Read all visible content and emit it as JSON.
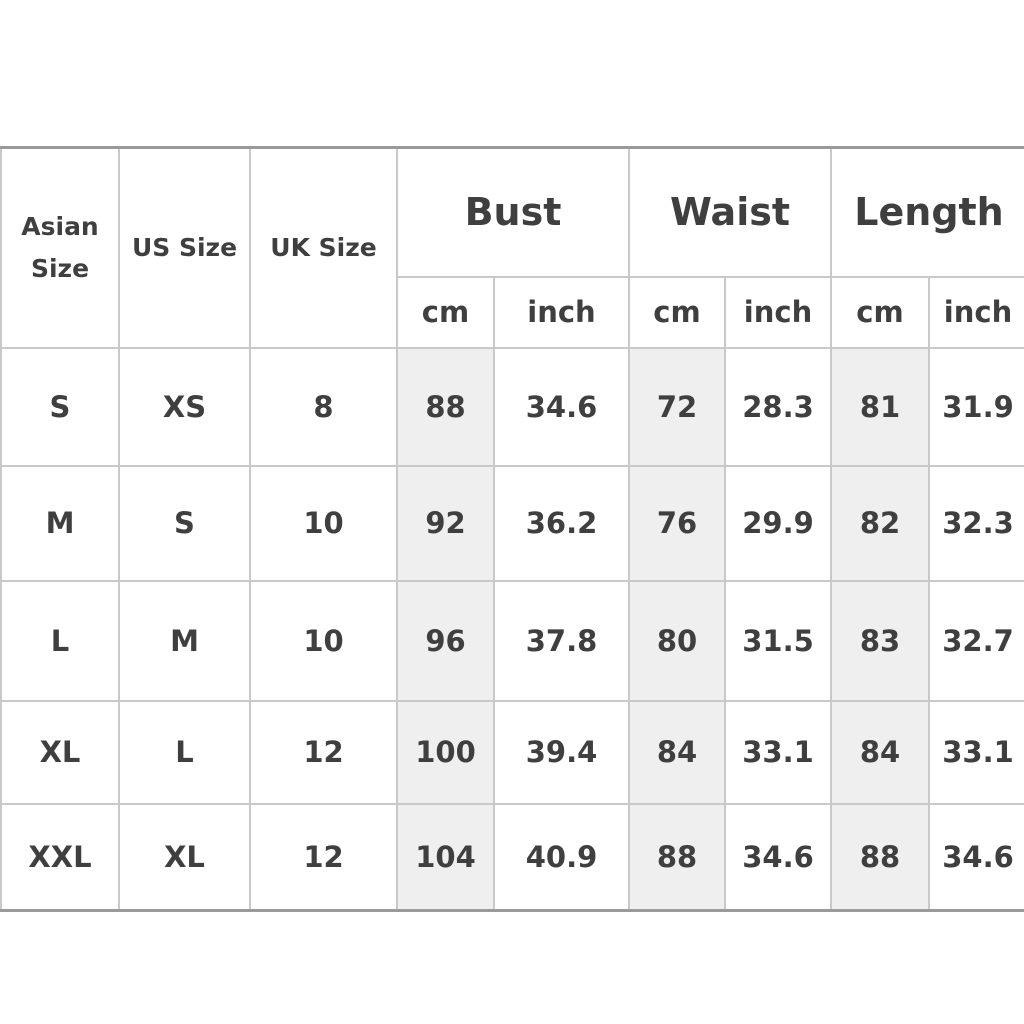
{
  "table": {
    "headers": {
      "asian_size": "Asian Size",
      "us_size": "US Size",
      "uk_size": "UK Size",
      "groups": [
        "Bust",
        "Waist",
        "Length"
      ],
      "units": [
        "cm",
        "inch",
        "cm",
        "inch",
        "cm",
        "inch"
      ]
    },
    "rows": [
      [
        "S",
        "XS",
        "8",
        "88",
        "34.6",
        "72",
        "28.3",
        "81",
        "31.9"
      ],
      [
        "M",
        "S",
        "10",
        "92",
        "36.2",
        "76",
        "29.9",
        "82",
        "32.3"
      ],
      [
        "L",
        "M",
        "10",
        "96",
        "37.8",
        "80",
        "31.5",
        "83",
        "32.7"
      ],
      [
        "XL",
        "L",
        "12",
        "100",
        "39.4",
        "84",
        "33.1",
        "84",
        "33.1"
      ],
      [
        "XXL",
        "XL",
        "12",
        "104",
        "40.9",
        "88",
        "34.6",
        "88",
        "34.6"
      ]
    ],
    "shade_color": "#efefef",
    "text_color": "#3f3f3f"
  }
}
